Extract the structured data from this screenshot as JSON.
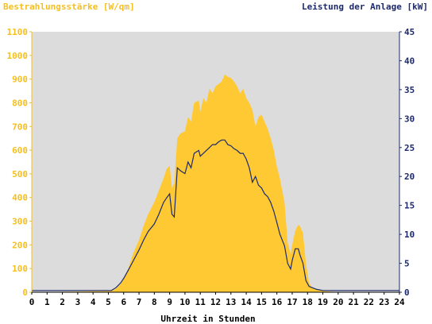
{
  "colors": {
    "plot_background": "#dcdcdc",
    "irradiance_fill": "#ffc933",
    "power_line": "#1c2a6b",
    "left_axis_text": "#f5bf1e",
    "right_axis_text": "#1c2a6b"
  },
  "chart_data": {
    "type": "area",
    "title_left": "Bestrahlungsstärke [W/qm]",
    "title_right": "Leistung der Anlage [kW]",
    "xlabel": "Uhrzeit in Stunden",
    "xlim": [
      0,
      24
    ],
    "ylim_left": [
      0,
      1100
    ],
    "ylim_right": [
      0,
      45
    ],
    "x_ticks": [
      "0",
      "1",
      "2",
      "3",
      "4",
      "5",
      "6",
      "7",
      "8",
      "9",
      "10",
      "11",
      "12",
      "13",
      "14",
      "15",
      "16",
      "17",
      "18",
      "19",
      "20",
      "21",
      "22",
      "23",
      "24"
    ],
    "y_left_ticks": [
      "0",
      "100",
      "200",
      "300",
      "400",
      "500",
      "600",
      "700",
      "800",
      "900",
      "1000",
      "1100"
    ],
    "y_right_ticks": [
      "0",
      "5",
      "10",
      "15",
      "20",
      "25",
      "30",
      "35",
      "40",
      "45"
    ],
    "grid": false,
    "series": [
      {
        "name": "Bestrahlungsstärke [W/qm]",
        "axis": "left",
        "type": "area",
        "x": [
          0,
          5.2,
          5.5,
          5.8,
          6.0,
          6.3,
          6.6,
          7.0,
          7.3,
          7.6,
          8.0,
          8.3,
          8.6,
          8.8,
          9.0,
          9.15,
          9.3,
          9.5,
          9.7,
          10.0,
          10.2,
          10.4,
          10.6,
          10.9,
          11.0,
          11.2,
          11.4,
          11.6,
          11.8,
          12.0,
          12.2,
          12.4,
          12.6,
          12.8,
          13.0,
          13.2,
          13.4,
          13.6,
          13.8,
          14.0,
          14.2,
          14.4,
          14.6,
          14.8,
          15.0,
          15.2,
          15.4,
          15.6,
          15.8,
          16.0,
          16.2,
          16.5,
          16.7,
          16.9,
          17.0,
          17.2,
          17.4,
          17.5,
          17.7,
          17.9,
          18.1,
          18.3,
          18.6,
          19.0,
          19.5,
          20.0,
          24
        ],
        "y": [
          0,
          5,
          15,
          35,
          60,
          100,
          160,
          220,
          280,
          330,
          380,
          430,
          480,
          520,
          535,
          440,
          460,
          650,
          670,
          680,
          740,
          720,
          800,
          810,
          760,
          820,
          800,
          860,
          840,
          870,
          880,
          890,
          920,
          910,
          905,
          890,
          870,
          840,
          860,
          820,
          800,
          770,
          700,
          740,
          750,
          720,
          690,
          650,
          600,
          530,
          480,
          380,
          210,
          160,
          200,
          260,
          285,
          280,
          250,
          120,
          40,
          20,
          10,
          5,
          3,
          0,
          0
        ]
      },
      {
        "name": "Leistung der Anlage [kW]",
        "axis": "right",
        "type": "line",
        "x": [
          0,
          5.2,
          5.5,
          5.8,
          6.0,
          6.3,
          6.6,
          7.0,
          7.3,
          7.6,
          8.0,
          8.3,
          8.6,
          8.8,
          9.0,
          9.15,
          9.3,
          9.5,
          9.7,
          10.0,
          10.2,
          10.4,
          10.6,
          10.9,
          11.0,
          11.2,
          11.4,
          11.6,
          11.8,
          12.0,
          12.2,
          12.4,
          12.6,
          12.8,
          13.0,
          13.2,
          13.4,
          13.6,
          13.8,
          14.0,
          14.2,
          14.4,
          14.6,
          14.8,
          15.0,
          15.2,
          15.4,
          15.6,
          15.8,
          16.0,
          16.2,
          16.5,
          16.7,
          16.9,
          17.0,
          17.2,
          17.4,
          17.5,
          17.7,
          17.9,
          18.1,
          18.3,
          18.6,
          19.0,
          19.5,
          20.0,
          24
        ],
        "y": [
          0.3,
          0.3,
          0.8,
          1.6,
          2.4,
          3.8,
          5.3,
          7.3,
          9.0,
          10.5,
          11.8,
          13.5,
          15.5,
          16.3,
          17.0,
          13.5,
          13.0,
          21.5,
          21.0,
          20.5,
          22.5,
          21.5,
          24.0,
          24.5,
          23.5,
          24.0,
          24.5,
          25.0,
          25.5,
          25.5,
          26.0,
          26.3,
          26.3,
          25.5,
          25.3,
          24.8,
          24.5,
          24.0,
          24.0,
          23.0,
          21.5,
          19.0,
          20.0,
          18.5,
          18.0,
          17.0,
          16.5,
          15.5,
          14.0,
          12.0,
          10.0,
          8.0,
          5.0,
          4.0,
          5.5,
          7.5,
          7.5,
          6.5,
          5.0,
          2.0,
          1.0,
          0.8,
          0.5,
          0.3,
          0.3,
          0.3,
          0.3
        ]
      }
    ]
  }
}
